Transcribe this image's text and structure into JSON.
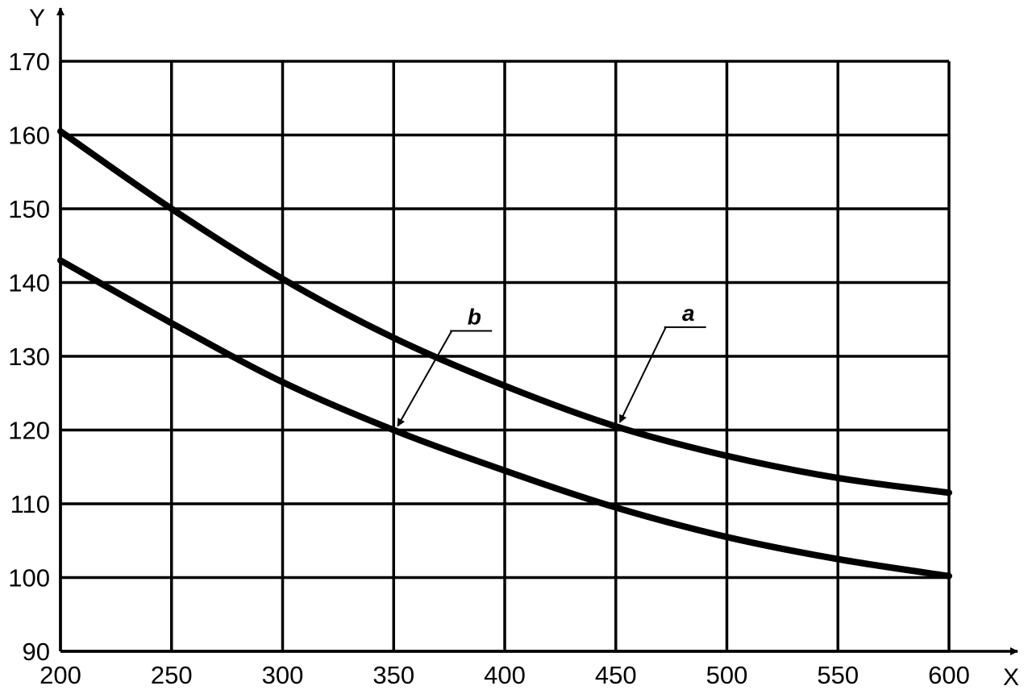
{
  "chart_data": {
    "type": "line",
    "xlabel": "X",
    "ylabel": "Y",
    "xlim": [
      200,
      600
    ],
    "ylim": [
      90,
      170
    ],
    "x_ticks": [
      200,
      250,
      300,
      350,
      400,
      450,
      500,
      550,
      600
    ],
    "y_ticks": [
      90,
      100,
      110,
      120,
      130,
      140,
      150,
      160,
      170
    ],
    "grid": true,
    "series": [
      {
        "name": "a",
        "x": [
          200,
          250,
          300,
          350,
          400,
          450,
          500,
          550,
          600
        ],
        "y": [
          160.5,
          150,
          140.5,
          132.5,
          126,
          120.5,
          116.5,
          113.5,
          111.5
        ]
      },
      {
        "name": "b",
        "x": [
          200,
          250,
          300,
          350,
          400,
          450,
          500,
          550,
          600
        ],
        "y": [
          143,
          134.5,
          126.5,
          120,
          114.5,
          109.5,
          105.5,
          102.5,
          100.2
        ]
      }
    ],
    "annotations": [
      {
        "text": "a",
        "points_to": [
          450,
          120.5
        ]
      },
      {
        "text": "b",
        "points_to": [
          350,
          120
        ]
      }
    ]
  }
}
